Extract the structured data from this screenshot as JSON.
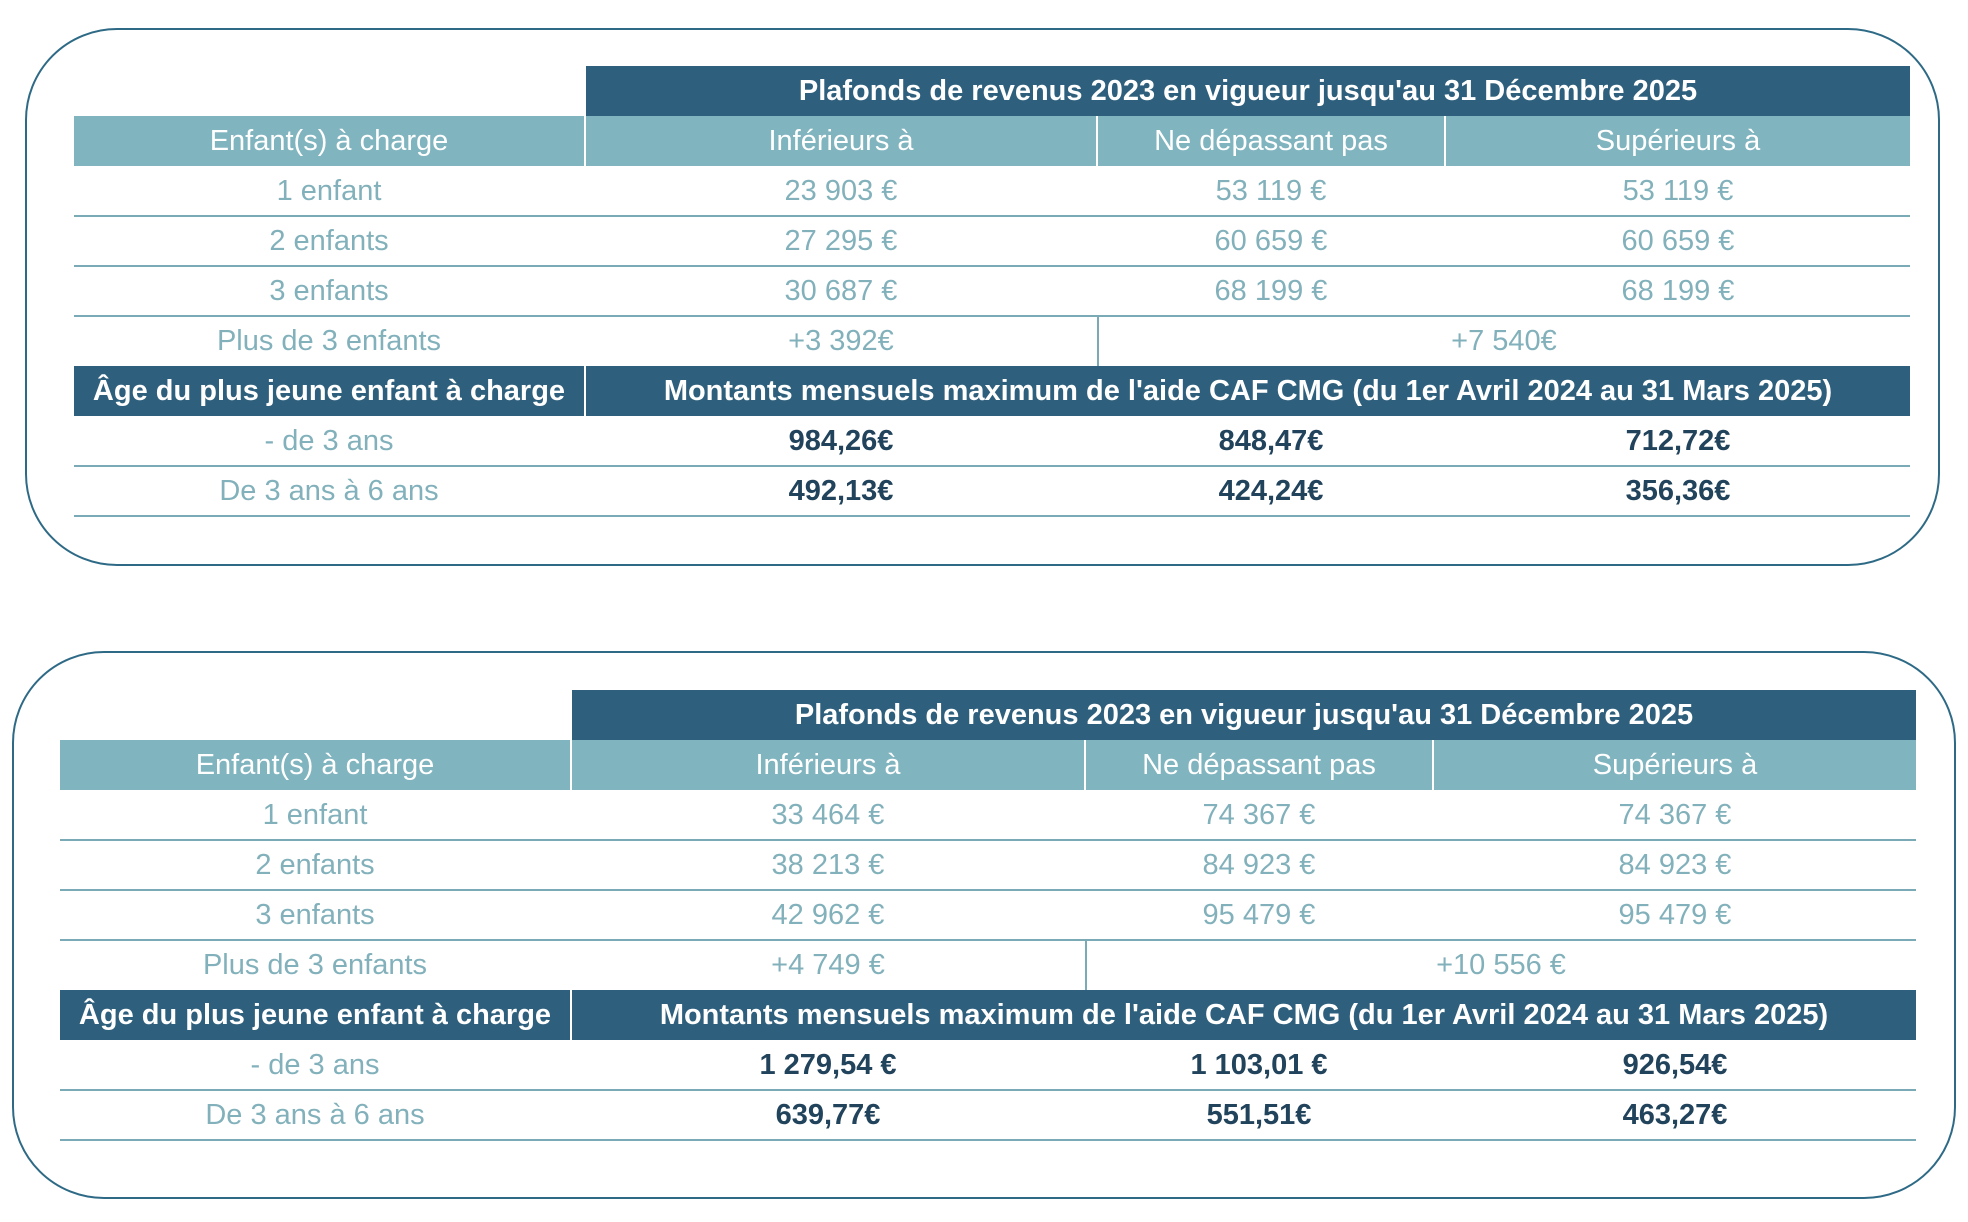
{
  "tables": [
    {
      "header_title": "Plafonds de revenus 2023 en vigueur jusqu'au 31 Décembre 2025",
      "col_header_label": "Enfant(s) à charge",
      "col_headers": [
        "Inférieurs à",
        "Ne dépassant pas",
        "Supérieurs à"
      ],
      "rows": [
        {
          "label": "1 enfant",
          "values": [
            "23 903 €",
            "53 119 €",
            "53 119 €"
          ]
        },
        {
          "label": "2 enfants",
          "values": [
            "27 295 €",
            "60 659 €",
            "60 659 €"
          ]
        },
        {
          "label": "3 enfants",
          "values": [
            "30 687 €",
            "68 199 €",
            "68 199 €"
          ]
        }
      ],
      "plus_row": {
        "label": "Plus de 3 enfants",
        "values": [
          "+3 392€",
          "+7 540€"
        ]
      },
      "age_header_label": "Âge du plus jeune enfant à charge",
      "age_header_title": "Montants mensuels maximum de l'aide CAF CMG (du 1er Avril 2024 au 31 Mars 2025)",
      "age_rows": [
        {
          "label": "- de 3 ans",
          "values": [
            "984,26€",
            "848,47€",
            "712,72€"
          ]
        },
        {
          "label": "De 3 ans à 6 ans",
          "values": [
            "492,13€",
            "424,24€",
            "356,36€"
          ]
        }
      ]
    },
    {
      "header_title": "Plafonds de revenus 2023 en vigueur jusqu'au 31 Décembre 2025",
      "col_header_label": "Enfant(s) à charge",
      "col_headers": [
        "Inférieurs à",
        "Ne dépassant pas",
        "Supérieurs à"
      ],
      "rows": [
        {
          "label": "1 enfant",
          "values": [
            "33 464 €",
            "74 367 €",
            "74 367 €"
          ]
        },
        {
          "label": "2 enfants",
          "values": [
            "38 213 €",
            "84 923 €",
            "84 923 €"
          ]
        },
        {
          "label": "3 enfants",
          "values": [
            "42 962 €",
            "95 479 €",
            "95 479 €"
          ]
        }
      ],
      "plus_row": {
        "label": "Plus de 3 enfants",
        "values": [
          "+4 749 €",
          "+10 556 €"
        ]
      },
      "age_header_label": "Âge du plus jeune enfant à charge",
      "age_header_title": "Montants mensuels maximum de l'aide CAF CMG (du 1er Avril 2024 au 31 Mars 2025)",
      "age_rows": [
        {
          "label": "- de 3 ans",
          "values": [
            "1 279,54 €",
            "1 103,01 €",
            "926,54€"
          ]
        },
        {
          "label": "De 3 ans à 6 ans",
          "values": [
            "639,77€",
            "551,51€",
            "463,27€"
          ]
        }
      ]
    }
  ]
}
